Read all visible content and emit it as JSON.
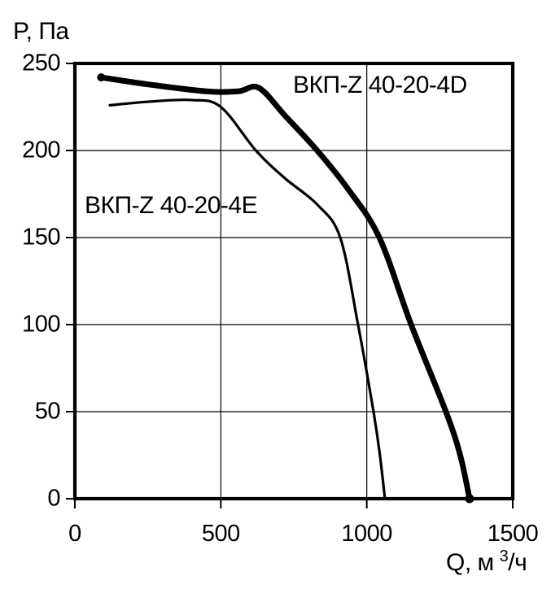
{
  "chart_data": {
    "type": "line",
    "title": "",
    "ylabel": "P, Па",
    "xlabel": "Q, м³/ч",
    "xlabel_parts": {
      "pre": "Q, м",
      "sup": "3",
      "post": "/ч"
    },
    "xlim": [
      0,
      1500
    ],
    "ylim": [
      0,
      250
    ],
    "x_ticks": [
      "0",
      "500",
      "1000",
      "1500"
    ],
    "y_ticks": [
      "0",
      "50",
      "100",
      "150",
      "200",
      "250"
    ],
    "grid": true,
    "legend_position": "inline-labels",
    "background": "#ffffff",
    "line_color": "#000000",
    "series": [
      {
        "name": "ВКП-Z 40-20-4D",
        "weight": "thick",
        "end_markers": true,
        "points_q_p": [
          [
            90,
            242
          ],
          [
            250,
            238
          ],
          [
            450,
            234
          ],
          [
            560,
            234
          ],
          [
            630,
            236
          ],
          [
            720,
            220
          ],
          [
            830,
            200
          ],
          [
            935,
            178
          ],
          [
            1043,
            150
          ],
          [
            1152,
            100
          ],
          [
            1271,
            50
          ],
          [
            1320,
            25
          ],
          [
            1352,
            0
          ]
        ]
      },
      {
        "name": "ВКП-Z 40-20-4E",
        "weight": "thin",
        "end_markers": false,
        "points_q_p": [
          [
            120,
            226
          ],
          [
            250,
            228
          ],
          [
            400,
            229
          ],
          [
            500,
            225
          ],
          [
            620,
            200
          ],
          [
            720,
            184
          ],
          [
            830,
            169
          ],
          [
            909,
            150
          ],
          [
            970,
            100
          ],
          [
            1023,
            50
          ],
          [
            1045,
            25
          ],
          [
            1062,
            0
          ]
        ]
      }
    ]
  }
}
